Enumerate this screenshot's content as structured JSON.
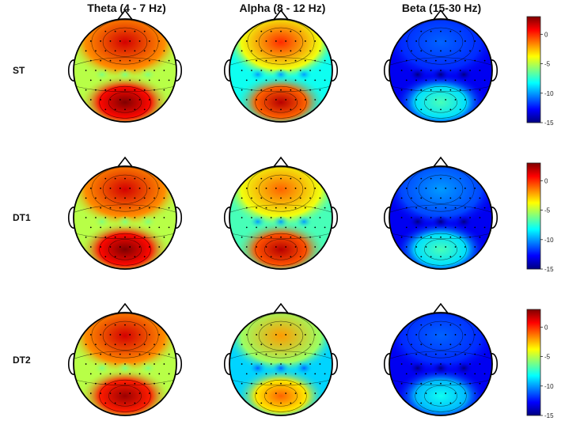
{
  "chart_data": {
    "type": "heatmap",
    "columns": [
      "Theta (4 - 7 Hz)",
      "Alpha (8 - 12 Hz)",
      "Beta (15-30 Hz)"
    ],
    "rows": [
      "ST",
      "DT1",
      "DT2"
    ],
    "colorbar": {
      "range": [
        -15,
        3
      ],
      "ticks": [
        "0",
        "-5",
        "-10",
        "-15"
      ],
      "tick_values": [
        0,
        -5,
        -10,
        -15
      ],
      "colormap": [
        "#00007f",
        "#0000ff",
        "#007fff",
        "#00ffff",
        "#7fff7f",
        "#ffff00",
        "#ff7f00",
        "#ff0000",
        "#7f0000"
      ]
    },
    "maps": [
      {
        "row": "ST",
        "column": "Theta (4 - 7 Hz)",
        "frontal": 1.5,
        "central": -5,
        "parietal": 3,
        "central_peaks": -6
      },
      {
        "row": "ST",
        "column": "Alpha (8 - 12 Hz)",
        "frontal": 0,
        "central": -8,
        "parietal": 2,
        "central_peaks": -10
      },
      {
        "row": "ST",
        "column": "Beta (15-30 Hz)",
        "frontal": -11,
        "central": -13,
        "parietal": -7,
        "central_peaks": -15
      },
      {
        "row": "DT1",
        "column": "Theta (4 - 7 Hz)",
        "frontal": 1.5,
        "central": -5,
        "parietal": 3,
        "central_peaks": -6
      },
      {
        "row": "DT1",
        "column": "Alpha (8 - 12 Hz)",
        "frontal": -1,
        "central": -7,
        "parietal": 2,
        "central_peaks": -10
      },
      {
        "row": "DT1",
        "column": "Beta (15-30 Hz)",
        "frontal": -10,
        "central": -13,
        "parietal": -7,
        "central_peaks": -15
      },
      {
        "row": "DT2",
        "column": "Theta (4 - 7 Hz)",
        "frontal": 1.5,
        "central": -5,
        "parietal": 2.5,
        "central_peaks": -6
      },
      {
        "row": "DT2",
        "column": "Alpha (8 - 12 Hz)",
        "frontal": -2,
        "central": -9,
        "parietal": -1,
        "central_peaks": -11
      },
      {
        "row": "DT2",
        "column": "Beta (15-30 Hz)",
        "frontal": -11,
        "central": -13,
        "parietal": -8,
        "central_peaks": -15
      }
    ]
  }
}
